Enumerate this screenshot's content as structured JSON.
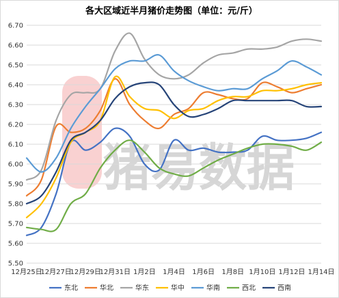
{
  "chart_data": {
    "type": "line",
    "title": "各大区域近半月猪价走势图（单位：元/斤）",
    "xlabel": "",
    "ylabel": "",
    "ylim": [
      5.5,
      6.7
    ],
    "yticks": [
      "5.50",
      "5.60",
      "5.70",
      "5.80",
      "5.90",
      "6.00",
      "6.10",
      "6.20",
      "6.30",
      "6.40",
      "6.50",
      "6.60",
      "6.70"
    ],
    "x": [
      "12月25日",
      "12月26日",
      "12月27日",
      "12月28日",
      "12月29日",
      "12月30日",
      "12月31日",
      "1月1日",
      "1月2日",
      "1月3日",
      "1月4日",
      "1月5日",
      "1月6日",
      "1月7日",
      "1月8日",
      "1月9日",
      "1月10日",
      "1月11日",
      "1月12日",
      "1月13日",
      "1月14日"
    ],
    "xtick_labels": [
      "12月25日",
      "12月27日",
      "12月29日",
      "12月31日",
      "1月2日",
      "1月4日",
      "1月6日",
      "1月8日",
      "1月10日",
      "1月12日",
      "1月14日"
    ],
    "grid": "horizontal",
    "legend_position": "bottom",
    "watermark": "猪易数据",
    "series": [
      {
        "name": "东北",
        "color": "#4472C4",
        "values": [
          5.64,
          5.68,
          5.85,
          6.11,
          6.07,
          6.11,
          6.18,
          6.14,
          6.0,
          5.97,
          6.12,
          6.07,
          6.08,
          6.06,
          6.06,
          6.07,
          6.14,
          6.12,
          6.12,
          6.13,
          6.16
        ]
      },
      {
        "name": "华北",
        "color": "#ED7D31",
        "values": [
          5.84,
          5.92,
          6.19,
          6.16,
          6.18,
          6.27,
          6.43,
          6.3,
          6.22,
          6.18,
          6.25,
          6.28,
          6.36,
          6.35,
          6.33,
          6.33,
          6.41,
          6.39,
          6.36,
          6.38,
          6.4
        ]
      },
      {
        "name": "华东",
        "color": "#A5A5A5",
        "values": [
          5.92,
          5.97,
          6.22,
          6.35,
          6.36,
          6.38,
          6.57,
          6.66,
          6.53,
          6.45,
          6.43,
          6.45,
          6.51,
          6.55,
          6.56,
          6.58,
          6.58,
          6.59,
          6.62,
          6.63,
          6.62
        ]
      },
      {
        "name": "华中",
        "color": "#FFC000",
        "values": [
          5.73,
          5.8,
          5.93,
          6.11,
          6.16,
          6.22,
          6.44,
          6.34,
          6.28,
          6.27,
          6.23,
          6.27,
          6.28,
          6.32,
          6.34,
          6.34,
          6.37,
          6.37,
          6.38,
          6.4,
          6.41
        ]
      },
      {
        "name": "华南",
        "color": "#5B9BD5",
        "values": [
          6.03,
          5.96,
          6.03,
          6.18,
          6.29,
          6.38,
          6.48,
          6.52,
          6.52,
          6.55,
          6.47,
          6.42,
          6.39,
          6.37,
          6.38,
          6.38,
          6.43,
          6.47,
          6.52,
          6.49,
          6.45
        ]
      },
      {
        "name": "西北",
        "color": "#70AD47",
        "values": [
          5.68,
          5.67,
          5.67,
          5.8,
          5.85,
          5.98,
          6.07,
          6.12,
          6.06,
          5.98,
          5.95,
          5.94,
          5.98,
          6.02,
          6.05,
          6.08,
          6.1,
          6.1,
          6.09,
          6.07,
          6.11
        ]
      },
      {
        "name": "西南",
        "color": "#264478",
        "values": [
          5.8,
          5.84,
          5.96,
          6.12,
          6.16,
          6.22,
          6.33,
          6.39,
          6.41,
          6.4,
          6.3,
          6.24,
          6.25,
          6.28,
          6.32,
          6.32,
          6.32,
          6.32,
          6.32,
          6.29,
          6.29
        ]
      }
    ]
  }
}
